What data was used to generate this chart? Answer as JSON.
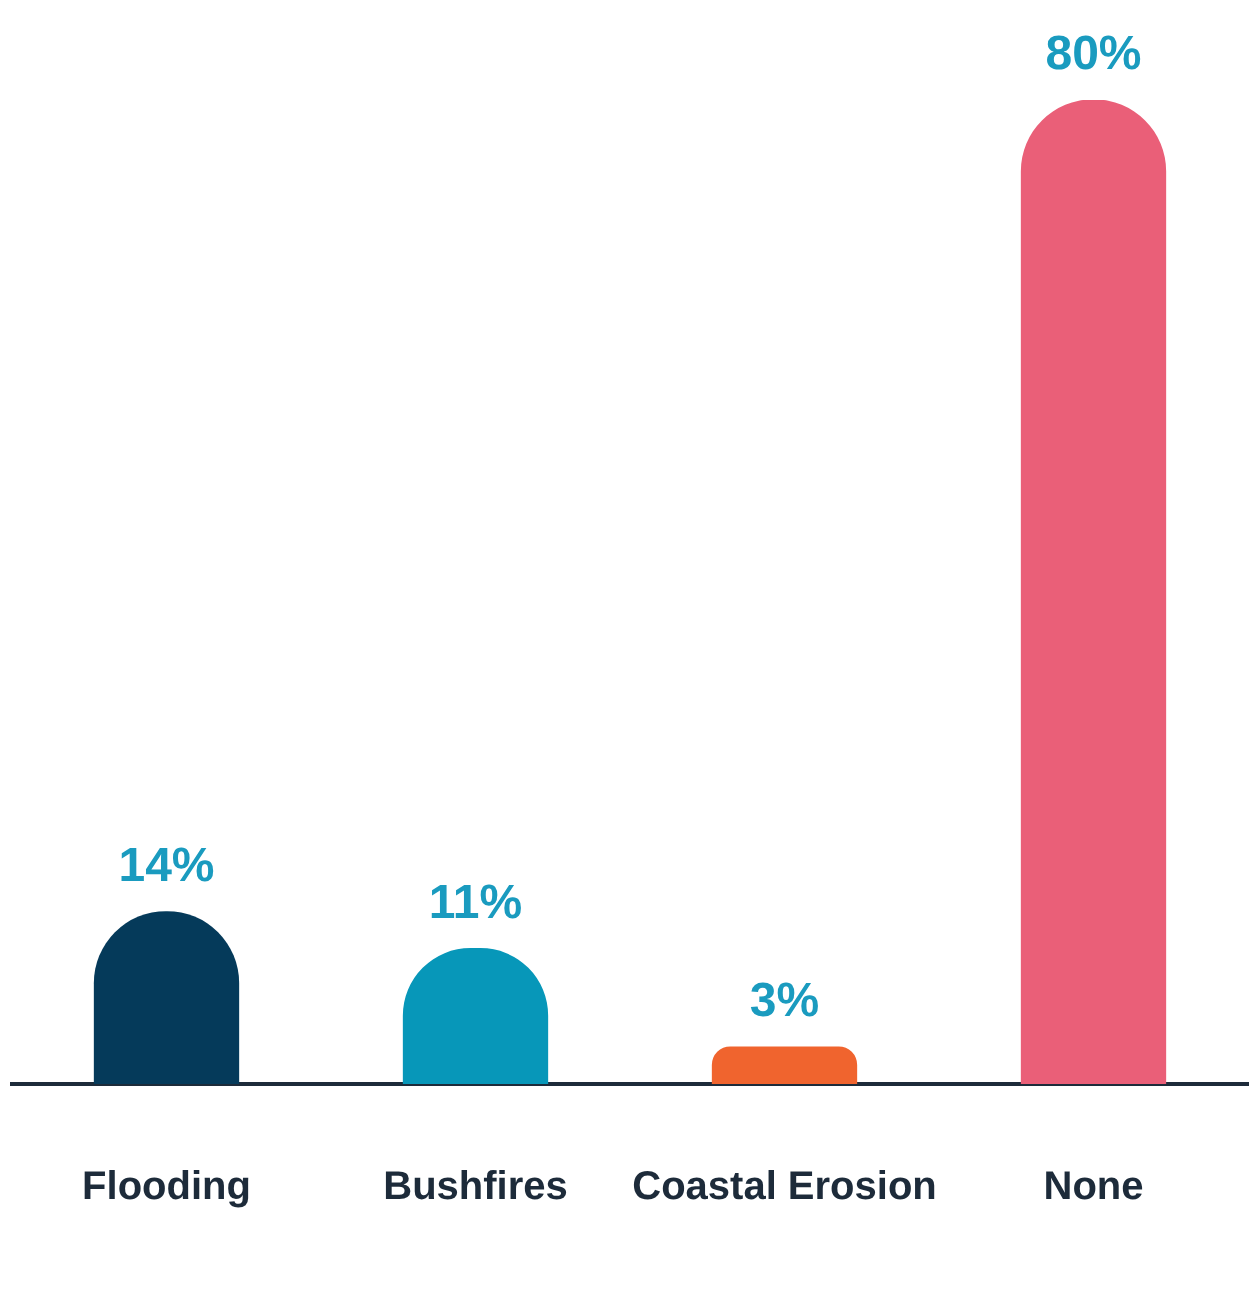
{
  "chart_data": {
    "type": "bar",
    "categories": [
      "Flooding",
      "Bushfires",
      "Coastal Erosion",
      "None"
    ],
    "values": [
      14,
      11,
      3,
      80
    ],
    "colors": [
      "#053a5a",
      "#0797b9",
      "#f0642e",
      "#ea5f78"
    ],
    "value_labels": [
      "14%",
      "11%",
      "3%",
      "80%"
    ],
    "grid": false,
    "legend": false
  }
}
